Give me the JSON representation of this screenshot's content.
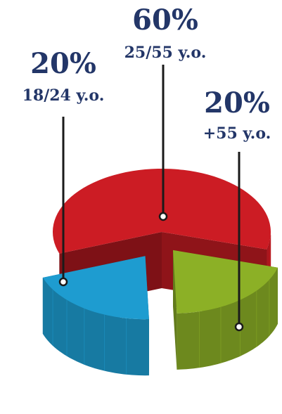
{
  "chart_data": {
    "type": "pie",
    "style": "3d-exploded",
    "title": "",
    "slices": [
      {
        "percent_label": "60%",
        "age_label": "25/55 y.o.",
        "value": 60,
        "color": "#cc1c24"
      },
      {
        "percent_label": "20%",
        "age_label": "+55 y.o.",
        "value": 20,
        "color": "#8cb026"
      },
      {
        "percent_label": "20%",
        "age_label": "18/24 y.o.",
        "value": 20,
        "color": "#1e9cd0"
      }
    ],
    "text_color": "#233668"
  }
}
